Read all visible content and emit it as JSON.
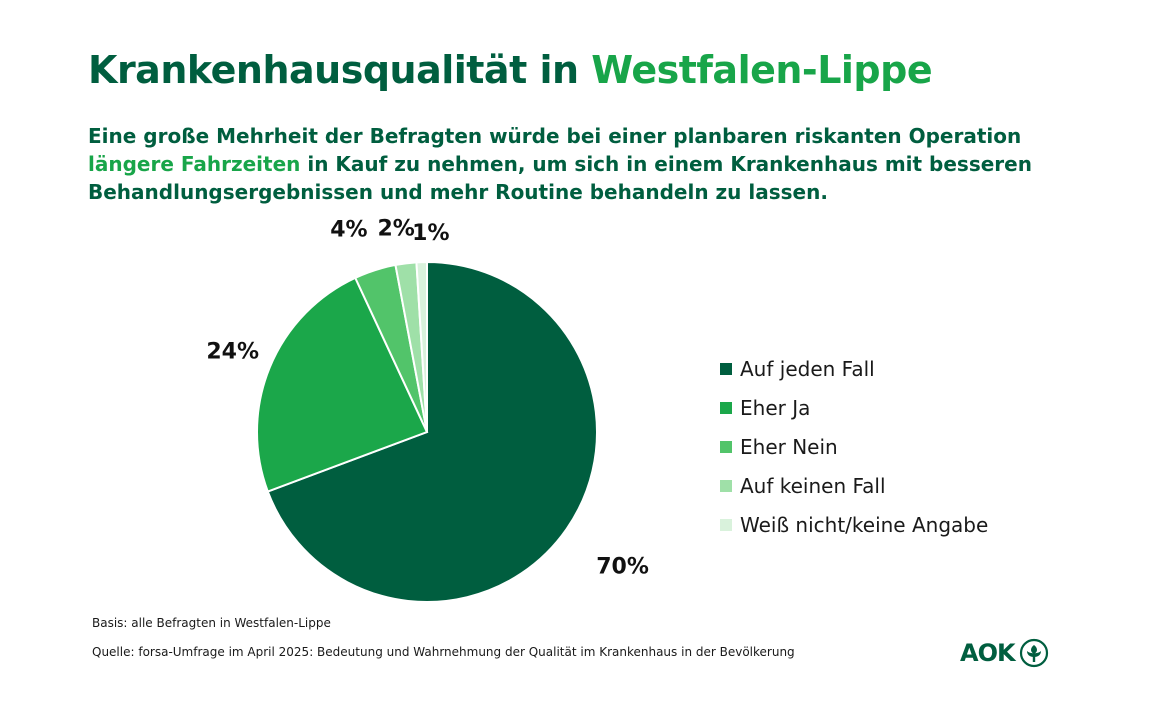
{
  "header": {
    "title_part1": "Krankenhausqualität in ",
    "title_part2": "Westfalen-Lippe",
    "subtitle_part1": "Eine große Mehrheit der Befragten würde bei einer planbaren riskanten Operation ",
    "subtitle_highlight": "längere Fahrzeiten",
    "subtitle_part2": " in Kauf zu nehmen, um sich in einem Krankenhaus mit besseren Behandlungsergebnissen und mehr Routine behandeln zu lassen."
  },
  "chart_data": {
    "type": "pie",
    "title": "",
    "legend_position": "right",
    "slices": [
      {
        "label": "Auf jeden Fall",
        "value": 70,
        "display": "70%",
        "color": "#005e3f"
      },
      {
        "label": "Eher Ja",
        "value": 24,
        "display": "24%",
        "color": "#1ba74a"
      },
      {
        "label": "Eher Nein",
        "value": 4,
        "display": "4%",
        "color": "#52c46a"
      },
      {
        "label": "Auf keinen Fall",
        "value": 2,
        "display": "2%",
        "color": "#9fe0a8"
      },
      {
        "label": "Weiß nicht/keine Angabe",
        "value": 1,
        "display": "1%",
        "color": "#d9f2dc"
      }
    ]
  },
  "footer": {
    "basis": "Basis: alle Befragten in Westfalen-Lippe",
    "source": "Quelle: forsa-Umfrage im April 2025: Bedeutung und Wahrnehmung der Qualität im Krankenhaus in der Bevölkerung",
    "logo_text": "AOK",
    "logo_icon": "aok-tree-icon"
  },
  "colors": {
    "dark_green": "#005e3f",
    "accent_green": "#18a549"
  }
}
